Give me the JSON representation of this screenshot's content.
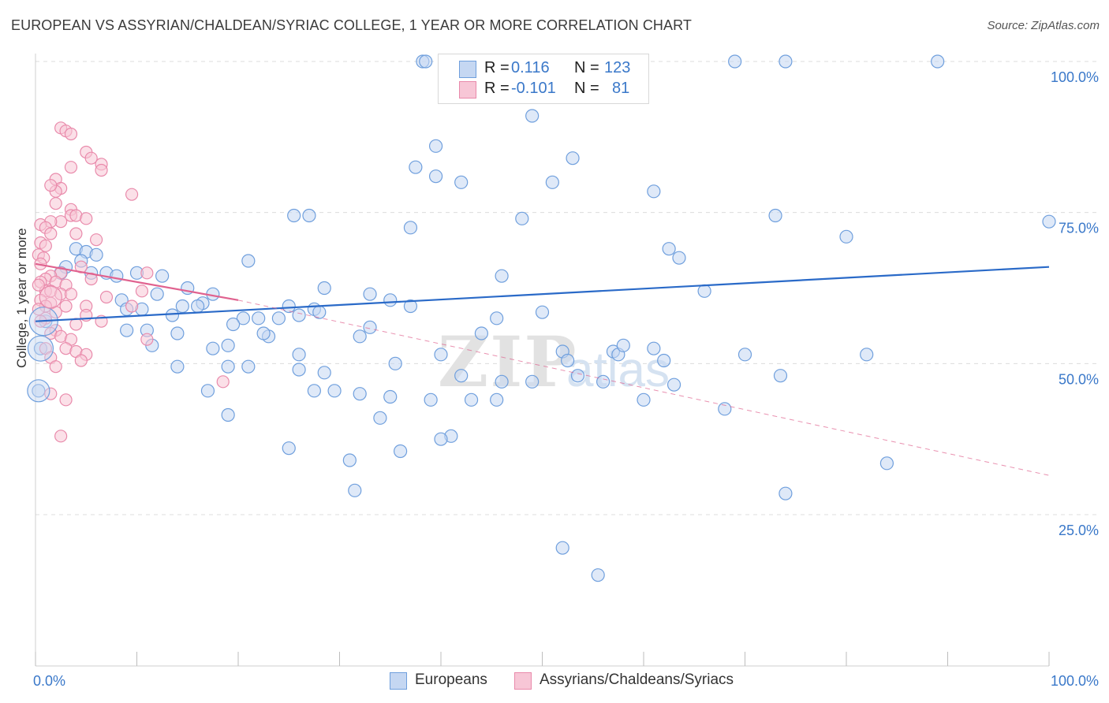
{
  "header": {
    "title": "EUROPEAN VS ASSYRIAN/CHALDEAN/SYRIAC COLLEGE, 1 YEAR OR MORE CORRELATION CHART",
    "source": "Source: ZipAtlas.com"
  },
  "legend": {
    "rows": [
      {
        "r_label": "R =",
        "r_value": "0.116",
        "n_label": "N =",
        "n_value": "123"
      },
      {
        "r_label": "R =",
        "r_value": "-0.101",
        "n_label": "N =",
        "n_value": "81"
      }
    ],
    "bottom": [
      "Europeans",
      "Assyrians/Chaldeans/Syriacs"
    ]
  },
  "watermark": {
    "zip": "ZIP",
    "atlas": "atlas"
  },
  "colors": {
    "blue_fill": "#c5d7f2",
    "blue_stroke": "#6f9fdd",
    "blue_line": "#2a6ac8",
    "blue_text": "#3a78c9",
    "pink_fill": "#f7c6d6",
    "pink_stroke": "#e98aab",
    "pink_line": "#e0628f",
    "pink_text": "#d85f8a",
    "grid": "#dcdcdc"
  },
  "chart_data": {
    "type": "scatter",
    "title": "EUROPEAN VS ASSYRIAN/CHALDEAN/SYRIAC COLLEGE, 1 YEAR OR MORE CORRELATION CHART",
    "xlabel": "",
    "ylabel": "College, 1 year or more",
    "xlim": [
      0,
      100
    ],
    "ylim": [
      0,
      100
    ],
    "x_tick_labels": [
      "0.0%",
      "100.0%"
    ],
    "y_tick_labels": [
      "25.0%",
      "50.0%",
      "75.0%",
      "100.0%"
    ],
    "grid": true,
    "legend_position": "top-center",
    "series": [
      {
        "name": "Europeans",
        "r": 0.116,
        "n": 123,
        "trend": {
          "x": [
            0,
            100
          ],
          "y": [
            57.0,
            66.0
          ]
        },
        "points": [
          {
            "x": 38.2,
            "y": 100
          },
          {
            "x": 38.5,
            "y": 100
          },
          {
            "x": 41,
            "y": 100
          },
          {
            "x": 69,
            "y": 100
          },
          {
            "x": 74,
            "y": 100
          },
          {
            "x": 89,
            "y": 100
          },
          {
            "x": 49,
            "y": 91
          },
          {
            "x": 39.5,
            "y": 86
          },
          {
            "x": 37.5,
            "y": 82.5
          },
          {
            "x": 53,
            "y": 84
          },
          {
            "x": 39.5,
            "y": 81
          },
          {
            "x": 42,
            "y": 80
          },
          {
            "x": 51,
            "y": 80
          },
          {
            "x": 61,
            "y": 78.5
          },
          {
            "x": 25.5,
            "y": 74.5
          },
          {
            "x": 27,
            "y": 74.5
          },
          {
            "x": 37,
            "y": 72.5
          },
          {
            "x": 48,
            "y": 74
          },
          {
            "x": 73,
            "y": 74.5
          },
          {
            "x": 80,
            "y": 71
          },
          {
            "x": 100,
            "y": 73.5
          },
          {
            "x": 62.5,
            "y": 69
          },
          {
            "x": 63.5,
            "y": 67.5
          },
          {
            "x": 4,
            "y": 69
          },
          {
            "x": 5,
            "y": 68.5
          },
          {
            "x": 6,
            "y": 68
          },
          {
            "x": 4.5,
            "y": 67
          },
          {
            "x": 3,
            "y": 66
          },
          {
            "x": 5.5,
            "y": 65
          },
          {
            "x": 7,
            "y": 65
          },
          {
            "x": 2.5,
            "y": 65
          },
          {
            "x": 8,
            "y": 64.5
          },
          {
            "x": 10,
            "y": 65
          },
          {
            "x": 12.5,
            "y": 64.5
          },
          {
            "x": 21,
            "y": 67
          },
          {
            "x": 46,
            "y": 64.5
          },
          {
            "x": 28.5,
            "y": 62.5
          },
          {
            "x": 15,
            "y": 62.5
          },
          {
            "x": 12,
            "y": 61.5
          },
          {
            "x": 8.5,
            "y": 60.5
          },
          {
            "x": 9,
            "y": 59
          },
          {
            "x": 16.5,
            "y": 60
          },
          {
            "x": 16,
            "y": 59.5
          },
          {
            "x": 10.5,
            "y": 59
          },
          {
            "x": 14.5,
            "y": 59.5
          },
          {
            "x": 17.5,
            "y": 61.5
          },
          {
            "x": 27.5,
            "y": 59
          },
          {
            "x": 25,
            "y": 59.5
          },
          {
            "x": 33,
            "y": 61.5
          },
          {
            "x": 35,
            "y": 60.5
          },
          {
            "x": 37,
            "y": 59.5
          },
          {
            "x": 66,
            "y": 62
          },
          {
            "x": 20.5,
            "y": 57.5
          },
          {
            "x": 22,
            "y": 57.5
          },
          {
            "x": 24,
            "y": 57.5
          },
          {
            "x": 28,
            "y": 58.5
          },
          {
            "x": 26,
            "y": 58
          },
          {
            "x": 13.5,
            "y": 58
          },
          {
            "x": 19.5,
            "y": 56.5
          },
          {
            "x": 33,
            "y": 56
          },
          {
            "x": 45.5,
            "y": 57.5
          },
          {
            "x": 50,
            "y": 58.5
          },
          {
            "x": 11,
            "y": 55.5
          },
          {
            "x": 9,
            "y": 55.5
          },
          {
            "x": 14,
            "y": 55
          },
          {
            "x": 23,
            "y": 54.5
          },
          {
            "x": 22.5,
            "y": 55
          },
          {
            "x": 32,
            "y": 54.5
          },
          {
            "x": 44,
            "y": 55
          },
          {
            "x": 11.5,
            "y": 53
          },
          {
            "x": 17.5,
            "y": 52.5
          },
          {
            "x": 19,
            "y": 53
          },
          {
            "x": 26,
            "y": 51.5
          },
          {
            "x": 40,
            "y": 51.5
          },
          {
            "x": 52,
            "y": 52
          },
          {
            "x": 57,
            "y": 52
          },
          {
            "x": 57.5,
            "y": 51.5
          },
          {
            "x": 58,
            "y": 53
          },
          {
            "x": 61,
            "y": 52.5
          },
          {
            "x": 52.5,
            "y": 50.5
          },
          {
            "x": 62,
            "y": 50.5
          },
          {
            "x": 70,
            "y": 51.5
          },
          {
            "x": 19,
            "y": 49.5
          },
          {
            "x": 21,
            "y": 49.5
          },
          {
            "x": 26,
            "y": 49
          },
          {
            "x": 28.5,
            "y": 48.5
          },
          {
            "x": 14,
            "y": 49.5
          },
          {
            "x": 35.5,
            "y": 50
          },
          {
            "x": 42,
            "y": 48
          },
          {
            "x": 46,
            "y": 47
          },
          {
            "x": 49,
            "y": 47
          },
          {
            "x": 53.5,
            "y": 48
          },
          {
            "x": 56,
            "y": 47
          },
          {
            "x": 63,
            "y": 46.5
          },
          {
            "x": 73.5,
            "y": 48
          },
          {
            "x": 82,
            "y": 51.5
          },
          {
            "x": 17,
            "y": 45.5
          },
          {
            "x": 27.5,
            "y": 45.5
          },
          {
            "x": 29.5,
            "y": 45.5
          },
          {
            "x": 32,
            "y": 45
          },
          {
            "x": 35,
            "y": 44.5
          },
          {
            "x": 39,
            "y": 44
          },
          {
            "x": 43,
            "y": 44
          },
          {
            "x": 45.5,
            "y": 44
          },
          {
            "x": 60,
            "y": 44
          },
          {
            "x": 68,
            "y": 42.5
          },
          {
            "x": 19,
            "y": 41.5
          },
          {
            "x": 34,
            "y": 41
          },
          {
            "x": 41,
            "y": 38
          },
          {
            "x": 40,
            "y": 37.5
          },
          {
            "x": 25,
            "y": 36
          },
          {
            "x": 36,
            "y": 35.5
          },
          {
            "x": 84,
            "y": 33.5
          },
          {
            "x": 31,
            "y": 34
          },
          {
            "x": 31.5,
            "y": 29
          },
          {
            "x": 74,
            "y": 28.5
          },
          {
            "x": 52,
            "y": 19.5
          },
          {
            "x": 55.5,
            "y": 15
          },
          {
            "x": 1,
            "y": 57
          },
          {
            "x": 0.5,
            "y": 52.5
          },
          {
            "x": 0.3,
            "y": 45.5
          }
        ]
      },
      {
        "name": "Assyrians/Chaldeans/Syriacs",
        "r": -0.101,
        "n": 81,
        "trend": {
          "x": [
            0,
            20
          ],
          "y": [
            66.5,
            60.5
          ]
        },
        "trend_extended": {
          "x": [
            20,
            100
          ],
          "y": [
            60.5,
            31.5
          ]
        },
        "points": [
          {
            "x": 2.5,
            "y": 89
          },
          {
            "x": 3,
            "y": 88.5
          },
          {
            "x": 3.5,
            "y": 88
          },
          {
            "x": 5,
            "y": 85
          },
          {
            "x": 5.5,
            "y": 84
          },
          {
            "x": 6.5,
            "y": 83
          },
          {
            "x": 6.5,
            "y": 82
          },
          {
            "x": 3.5,
            "y": 82.5
          },
          {
            "x": 2,
            "y": 80.5
          },
          {
            "x": 2.5,
            "y": 79
          },
          {
            "x": 2,
            "y": 78.5
          },
          {
            "x": 1.5,
            "y": 79.5
          },
          {
            "x": 9.5,
            "y": 78
          },
          {
            "x": 2,
            "y": 76.5
          },
          {
            "x": 3.5,
            "y": 75.5
          },
          {
            "x": 3.5,
            "y": 74.5
          },
          {
            "x": 4,
            "y": 74.5
          },
          {
            "x": 5,
            "y": 74
          },
          {
            "x": 2.5,
            "y": 73.5
          },
          {
            "x": 1.5,
            "y": 73.5
          },
          {
            "x": 0.5,
            "y": 73
          },
          {
            "x": 1,
            "y": 72.5
          },
          {
            "x": 1.5,
            "y": 71.5
          },
          {
            "x": 4,
            "y": 71.5
          },
          {
            "x": 6,
            "y": 70.5
          },
          {
            "x": 0.5,
            "y": 70
          },
          {
            "x": 1,
            "y": 69.5
          },
          {
            "x": 0.3,
            "y": 68
          },
          {
            "x": 0.8,
            "y": 67.5
          },
          {
            "x": 0.5,
            "y": 66.5
          },
          {
            "x": 4.5,
            "y": 66
          },
          {
            "x": 2.5,
            "y": 65
          },
          {
            "x": 1.5,
            "y": 64.5
          },
          {
            "x": 1,
            "y": 64
          },
          {
            "x": 0.5,
            "y": 63.5
          },
          {
            "x": 2,
            "y": 63.5
          },
          {
            "x": 3,
            "y": 63
          },
          {
            "x": 5.5,
            "y": 64
          },
          {
            "x": 11,
            "y": 65
          },
          {
            "x": 1,
            "y": 62
          },
          {
            "x": 1.5,
            "y": 62
          },
          {
            "x": 2.5,
            "y": 61.5
          },
          {
            "x": 3.5,
            "y": 61.5
          },
          {
            "x": 0.5,
            "y": 60.5
          },
          {
            "x": 1.5,
            "y": 60
          },
          {
            "x": 7,
            "y": 61
          },
          {
            "x": 10.5,
            "y": 62
          },
          {
            "x": 1,
            "y": 59.5
          },
          {
            "x": 3,
            "y": 59.5
          },
          {
            "x": 5,
            "y": 59.5
          },
          {
            "x": 9.5,
            "y": 59.5
          },
          {
            "x": 2,
            "y": 58.5
          },
          {
            "x": 1,
            "y": 57.5
          },
          {
            "x": 5,
            "y": 58
          },
          {
            "x": 6.5,
            "y": 57
          },
          {
            "x": 4,
            "y": 56.5
          },
          {
            "x": 2,
            "y": 55.5
          },
          {
            "x": 1.5,
            "y": 55
          },
          {
            "x": 2.5,
            "y": 54.5
          },
          {
            "x": 3.5,
            "y": 54
          },
          {
            "x": 11,
            "y": 54
          },
          {
            "x": 3,
            "y": 52.5
          },
          {
            "x": 1,
            "y": 52.5
          },
          {
            "x": 4,
            "y": 52
          },
          {
            "x": 5,
            "y": 51.5
          },
          {
            "x": 1.5,
            "y": 51
          },
          {
            "x": 2,
            "y": 49.5
          },
          {
            "x": 4.5,
            "y": 50.5
          },
          {
            "x": 18.5,
            "y": 47
          },
          {
            "x": 1.5,
            "y": 45
          },
          {
            "x": 3,
            "y": 44
          },
          {
            "x": 2.5,
            "y": 38
          },
          {
            "x": 0.5,
            "y": 57
          },
          {
            "x": 0.3,
            "y": 63
          },
          {
            "x": 0.3,
            "y": 59
          }
        ]
      }
    ]
  }
}
